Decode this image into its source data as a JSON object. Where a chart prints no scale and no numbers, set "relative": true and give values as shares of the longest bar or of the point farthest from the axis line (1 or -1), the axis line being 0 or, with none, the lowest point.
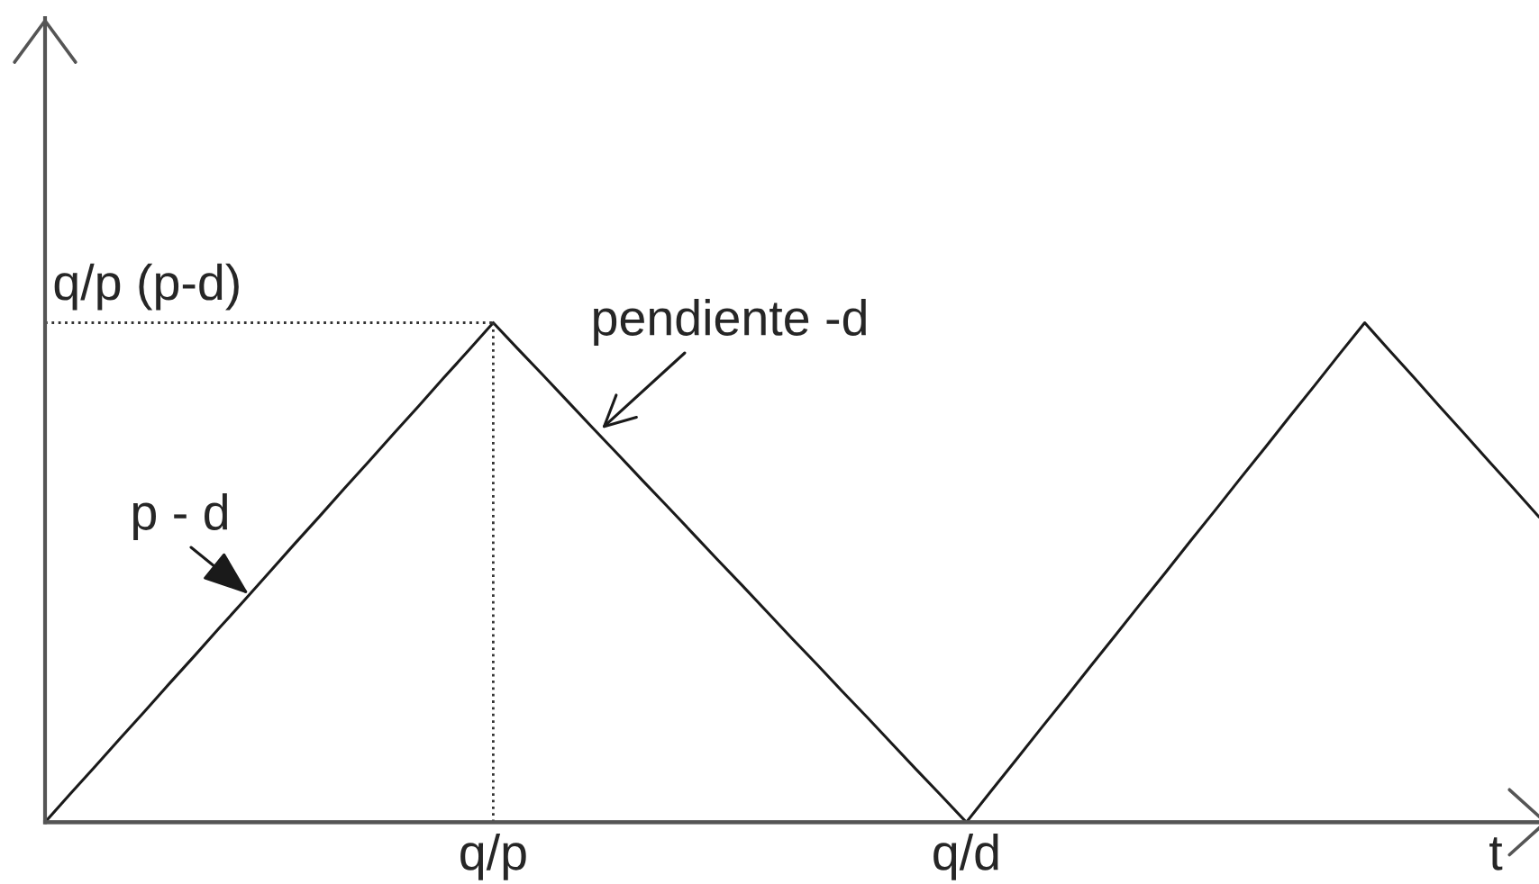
{
  "chart_data": {
    "type": "line",
    "relative": true,
    "xlabel": "t",
    "categories": [
      null,
      null,
      null,
      null,
      null,
      null,
      null,
      null,
      null,
      null,
      null,
      null,
      null,
      null,
      null,
      null,
      null,
      null,
      "q/p",
      null,
      null,
      null,
      null,
      null,
      null,
      null,
      null,
      null,
      null,
      null,
      null,
      null,
      null,
      null,
      null,
      null,
      null,
      "q/d",
      null,
      null,
      null,
      null,
      null,
      null,
      null,
      null,
      null,
      null,
      null,
      null,
      null,
      null,
      null,
      null,
      null,
      null,
      null,
      null,
      null,
      null,
      null
    ],
    "series": [
      {
        "color": "#1a1a1a",
        "values": [
          0,
          0.056,
          0.111,
          0.167,
          0.222,
          0.278,
          0.333,
          0.389,
          0.444,
          0.5,
          0.556,
          0.611,
          0.667,
          0.722,
          0.778,
          0.833,
          0.889,
          0.944,
          1,
          0.947,
          0.895,
          0.842,
          0.789,
          0.737,
          0.684,
          0.632,
          0.579,
          0.526,
          0.474,
          0.421,
          0.368,
          0.316,
          0.263,
          0.211,
          0.158,
          0.105,
          0.053,
          0,
          0.063,
          0.125,
          0.188,
          0.25,
          0.313,
          0.375,
          0.438,
          0.5,
          0.563,
          0.625,
          0.688,
          0.75,
          0.813,
          0.875,
          0.938,
          1,
          0.944,
          0.889,
          0.833,
          0.778,
          0.722,
          0.667,
          0.611
        ]
      }
    ],
    "ref_lines": [
      {
        "axis": "y",
        "value": 1,
        "label": "q/p (p-d)",
        "line_style": "dotted",
        "color": "#333333"
      }
    ],
    "annotations": [
      "p - d",
      "pendiente -d"
    ],
    "line_style": "solid"
  }
}
